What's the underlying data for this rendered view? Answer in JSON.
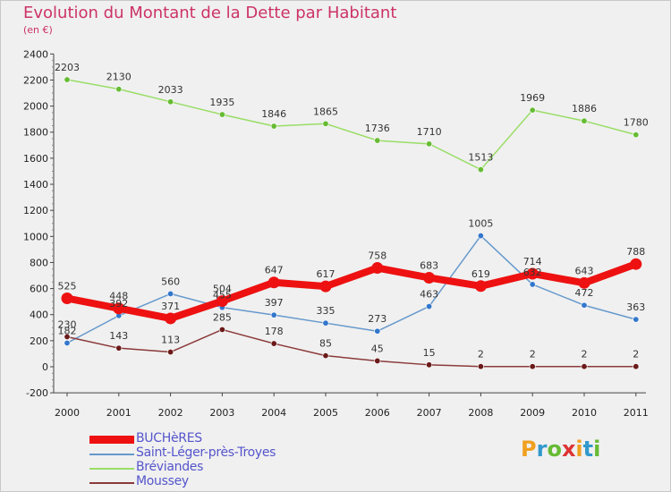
{
  "title": "Evolution du Montant de la Dette par Habitant",
  "subtitle": "(en €)",
  "logo_text": "Proxiti",
  "logo_colors": [
    "#f0a020",
    "#3399cc",
    "#66bb33",
    "#dd3333"
  ],
  "chart_data": {
    "type": "line",
    "categories": [
      "2000",
      "2001",
      "2002",
      "2003",
      "2004",
      "2005",
      "2006",
      "2007",
      "2008",
      "2009",
      "2010",
      "2011"
    ],
    "ylim": [
      -200,
      2400
    ],
    "yticks": [
      -200,
      0,
      200,
      400,
      600,
      800,
      1000,
      1200,
      1400,
      1600,
      1800,
      2000,
      2200,
      2400
    ],
    "grid": false,
    "legend_position": "bottom-left",
    "series": [
      {
        "name": "BUCHèRES",
        "color": "#ee1111",
        "marker": "#ee1111",
        "width": "thick",
        "values": [
          525,
          448,
          371,
          504,
          647,
          617,
          758,
          683,
          619,
          714,
          643,
          788
        ],
        "labels": [
          "525",
          "448",
          "371",
          "504",
          "647",
          "617",
          "758",
          "683",
          "619",
          "714",
          "643",
          "788"
        ]
      },
      {
        "name": "Saint-Léger-près-Troyes",
        "color": "#6699cc",
        "marker": "#3377cc",
        "width": "thin",
        "values": [
          182,
          392,
          560,
          455,
          397,
          335,
          273,
          463,
          1005,
          632,
          472,
          363
        ],
        "labels": [
          "182",
          "392",
          "560",
          "455",
          "397",
          "335",
          "273",
          "463",
          "1005",
          "632",
          "472",
          "363"
        ]
      },
      {
        "name": "Bréviandes",
        "color": "#99dd66",
        "marker": "#66bb33",
        "width": "thin",
        "values": [
          2203,
          2130,
          2033,
          1935,
          1846,
          1865,
          1736,
          1710,
          1513,
          1969,
          1886,
          1780
        ],
        "labels": [
          "2203",
          "2130",
          "2033",
          "1935",
          "1846",
          "1865",
          "1736",
          "1710",
          "1513",
          "1969",
          "1886",
          "1780"
        ]
      },
      {
        "name": "Moussey",
        "color": "#8b3a3a",
        "marker": "#6b1a1a",
        "width": "thin",
        "values": [
          230,
          143,
          113,
          285,
          178,
          85,
          45,
          15,
          2,
          2,
          2,
          2
        ],
        "labels": [
          "230",
          "143",
          "113",
          "285",
          "178",
          "85",
          "45",
          "15",
          "2",
          "2",
          "2",
          "2"
        ]
      }
    ]
  }
}
